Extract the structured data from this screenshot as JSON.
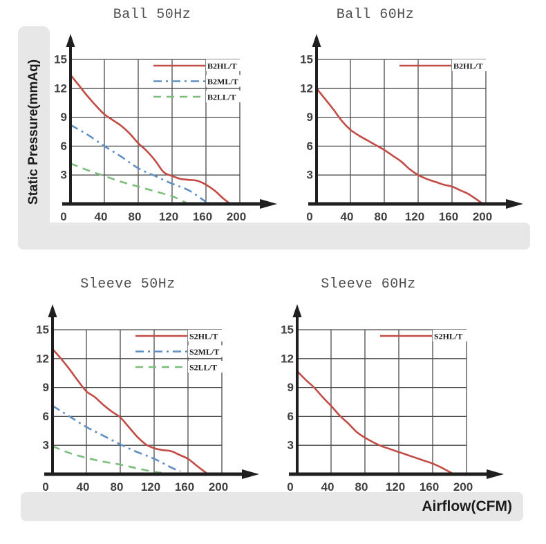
{
  "axis_labels": {
    "y": "Static Pressure(mmAq)",
    "x": "Airflow(CFM)"
  },
  "colors": {
    "series_red": "#c24b45",
    "series_blue": "#5f8fc3",
    "series_green": "#7cbd7c",
    "grid": "#4a4a4a",
    "axis": "#1f1f1f",
    "tick_label": "#414141",
    "legend_text": "#1b1b1b",
    "band": "#e7e7e7",
    "title": "#4f4f4f"
  },
  "chart_data": [
    {
      "type": "line",
      "title": "Ball 50Hz",
      "xlabel": "Airflow(CFM)",
      "ylabel": "Static Pressure(mmAq)",
      "xlim": [
        0,
        200
      ],
      "ylim": [
        0,
        15
      ],
      "x_ticks": [
        0,
        40,
        80,
        120,
        160,
        200
      ],
      "y_ticks": [
        0,
        3,
        6,
        9,
        12,
        15
      ],
      "grid": true,
      "legend_position": "top-right",
      "series": [
        {
          "name": "B2HL/T",
          "color": "#c24b45",
          "line_style": "solid",
          "points": [
            [
              0,
              13.4
            ],
            [
              10,
              12.3
            ],
            [
              20,
              11.2
            ],
            [
              30,
              10.2
            ],
            [
              40,
              9.3
            ],
            [
              50,
              8.7
            ],
            [
              60,
              8.1
            ],
            [
              70,
              7.3
            ],
            [
              80,
              6.3
            ],
            [
              90,
              5.5
            ],
            [
              100,
              4.5
            ],
            [
              110,
              3.3
            ],
            [
              120,
              2.9
            ],
            [
              130,
              2.6
            ],
            [
              140,
              2.5
            ],
            [
              150,
              2.4
            ],
            [
              160,
              2.0
            ],
            [
              170,
              1.4
            ],
            [
              180,
              0.6
            ],
            [
              188,
              0.05
            ]
          ]
        },
        {
          "name": "B2ML/T",
          "color": "#5f8fc3",
          "line_style": "dashdot",
          "points": [
            [
              0,
              8.2
            ],
            [
              20,
              7.2
            ],
            [
              40,
              6.0
            ],
            [
              60,
              4.9
            ],
            [
              80,
              3.7
            ],
            [
              100,
              2.9
            ],
            [
              120,
              2.1
            ],
            [
              140,
              1.4
            ],
            [
              160,
              0.2
            ]
          ]
        },
        {
          "name": "B2LL/T",
          "color": "#7cbd7c",
          "line_style": "dashed",
          "points": [
            [
              0,
              4.2
            ],
            [
              20,
              3.5
            ],
            [
              40,
              2.9
            ],
            [
              60,
              2.3
            ],
            [
              80,
              1.8
            ],
            [
              100,
              1.3
            ],
            [
              120,
              0.8
            ],
            [
              137,
              0.1
            ]
          ]
        }
      ]
    },
    {
      "type": "line",
      "title": "Ball 60Hz",
      "xlabel": "Airflow(CFM)",
      "ylabel": "Static Pressure(mmAq)",
      "xlim": [
        0,
        200
      ],
      "ylim": [
        0,
        15
      ],
      "x_ticks": [
        0,
        40,
        80,
        120,
        160,
        200
      ],
      "y_ticks": [
        0,
        3,
        6,
        9,
        12,
        15
      ],
      "grid": true,
      "legend_position": "top-right",
      "series": [
        {
          "name": "B2HL/T",
          "color": "#c24b45",
          "line_style": "solid",
          "points": [
            [
              0,
              12.0
            ],
            [
              10,
              10.9
            ],
            [
              20,
              9.8
            ],
            [
              30,
              8.6
            ],
            [
              40,
              7.7
            ],
            [
              50,
              7.1
            ],
            [
              60,
              6.6
            ],
            [
              70,
              6.1
            ],
            [
              80,
              5.6
            ],
            [
              90,
              5.0
            ],
            [
              100,
              4.4
            ],
            [
              110,
              3.6
            ],
            [
              120,
              3.0
            ],
            [
              130,
              2.6
            ],
            [
              140,
              2.3
            ],
            [
              150,
              2.0
            ],
            [
              160,
              1.8
            ],
            [
              170,
              1.4
            ],
            [
              180,
              1.0
            ],
            [
              195,
              0.1
            ]
          ]
        }
      ]
    },
    {
      "type": "line",
      "title": "Sleeve 50Hz",
      "xlabel": "Airflow(CFM)",
      "ylabel": "Static Pressure(mmAq)",
      "xlim": [
        0,
        200
      ],
      "ylim": [
        0,
        15
      ],
      "x_ticks": [
        0,
        40,
        80,
        120,
        160,
        200
      ],
      "y_ticks": [
        0,
        3,
        6,
        9,
        12,
        15
      ],
      "grid": true,
      "legend_position": "top-right",
      "series": [
        {
          "name": "S2HL/T",
          "color": "#c24b45",
          "line_style": "solid",
          "points": [
            [
              0,
              13.0
            ],
            [
              10,
              12.0
            ],
            [
              20,
              10.9
            ],
            [
              30,
              9.7
            ],
            [
              40,
              8.6
            ],
            [
              50,
              8.0
            ],
            [
              60,
              7.2
            ],
            [
              70,
              6.5
            ],
            [
              80,
              5.9
            ],
            [
              90,
              4.9
            ],
            [
              100,
              3.9
            ],
            [
              110,
              3.1
            ],
            [
              120,
              2.7
            ],
            [
              130,
              2.5
            ],
            [
              140,
              2.4
            ],
            [
              150,
              2.0
            ],
            [
              160,
              1.6
            ],
            [
              170,
              0.9
            ],
            [
              182,
              0.1
            ]
          ]
        },
        {
          "name": "S2ML/T",
          "color": "#5f8fc3",
          "line_style": "dashdot",
          "points": [
            [
              0,
              7.1
            ],
            [
              20,
              6.0
            ],
            [
              40,
              4.9
            ],
            [
              60,
              4.0
            ],
            [
              80,
              3.1
            ],
            [
              100,
              2.3
            ],
            [
              120,
              1.6
            ],
            [
              140,
              0.7
            ],
            [
              151,
              0.3
            ]
          ]
        },
        {
          "name": "S2LL/T",
          "color": "#7cbd7c",
          "line_style": "dashed",
          "points": [
            [
              0,
              2.9
            ],
            [
              20,
              2.2
            ],
            [
              40,
              1.7
            ],
            [
              60,
              1.3
            ],
            [
              80,
              1.0
            ],
            [
              100,
              0.6
            ],
            [
              120,
              0.25
            ],
            [
              137,
              0.05
            ]
          ]
        }
      ]
    },
    {
      "type": "line",
      "title": "Sleeve 60Hz",
      "xlabel": "Airflow(CFM)",
      "ylabel": "Static Pressure(mmAq)",
      "xlim": [
        0,
        200
      ],
      "ylim": [
        0,
        15
      ],
      "x_ticks": [
        0,
        40,
        80,
        120,
        160,
        200
      ],
      "y_ticks": [
        0,
        3,
        6,
        9,
        12,
        15
      ],
      "grid": true,
      "legend_position": "top-right",
      "series": [
        {
          "name": "S2HL/T",
          "color": "#c24b45",
          "line_style": "solid",
          "points": [
            [
              0,
              10.7
            ],
            [
              10,
              9.8
            ],
            [
              20,
              9.0
            ],
            [
              30,
              8.0
            ],
            [
              40,
              7.1
            ],
            [
              50,
              6.1
            ],
            [
              60,
              5.3
            ],
            [
              70,
              4.4
            ],
            [
              80,
              3.8
            ],
            [
              90,
              3.3
            ],
            [
              100,
              2.9
            ],
            [
              110,
              2.6
            ],
            [
              120,
              2.3
            ],
            [
              130,
              2.0
            ],
            [
              140,
              1.7
            ],
            [
              150,
              1.4
            ],
            [
              160,
              1.1
            ],
            [
              170,
              0.7
            ],
            [
              184,
              0.05
            ]
          ]
        }
      ]
    }
  ]
}
